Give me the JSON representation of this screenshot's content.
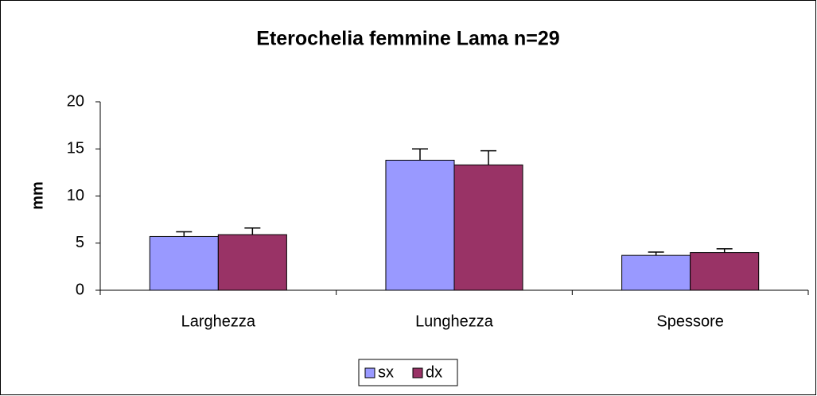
{
  "chart_data": {
    "type": "bar",
    "title": "Eterochelia femmine Lama n=29",
    "y_label": "mm",
    "categories": [
      "Larghezza",
      "Lunghezza",
      "Spessore"
    ],
    "series": [
      {
        "name": "sx",
        "color": "#9999ff",
        "values": [
          5.7,
          13.8,
          3.7
        ],
        "errors": [
          0.5,
          1.2,
          0.35
        ]
      },
      {
        "name": "dx",
        "color": "#993366",
        "values": [
          5.9,
          13.3,
          4.0
        ],
        "errors": [
          0.7,
          1.5,
          0.4
        ]
      }
    ],
    "ylim": [
      0,
      20
    ],
    "yticks": [
      0,
      5,
      10,
      15,
      20
    ],
    "grid": false,
    "legend": "bottom"
  }
}
